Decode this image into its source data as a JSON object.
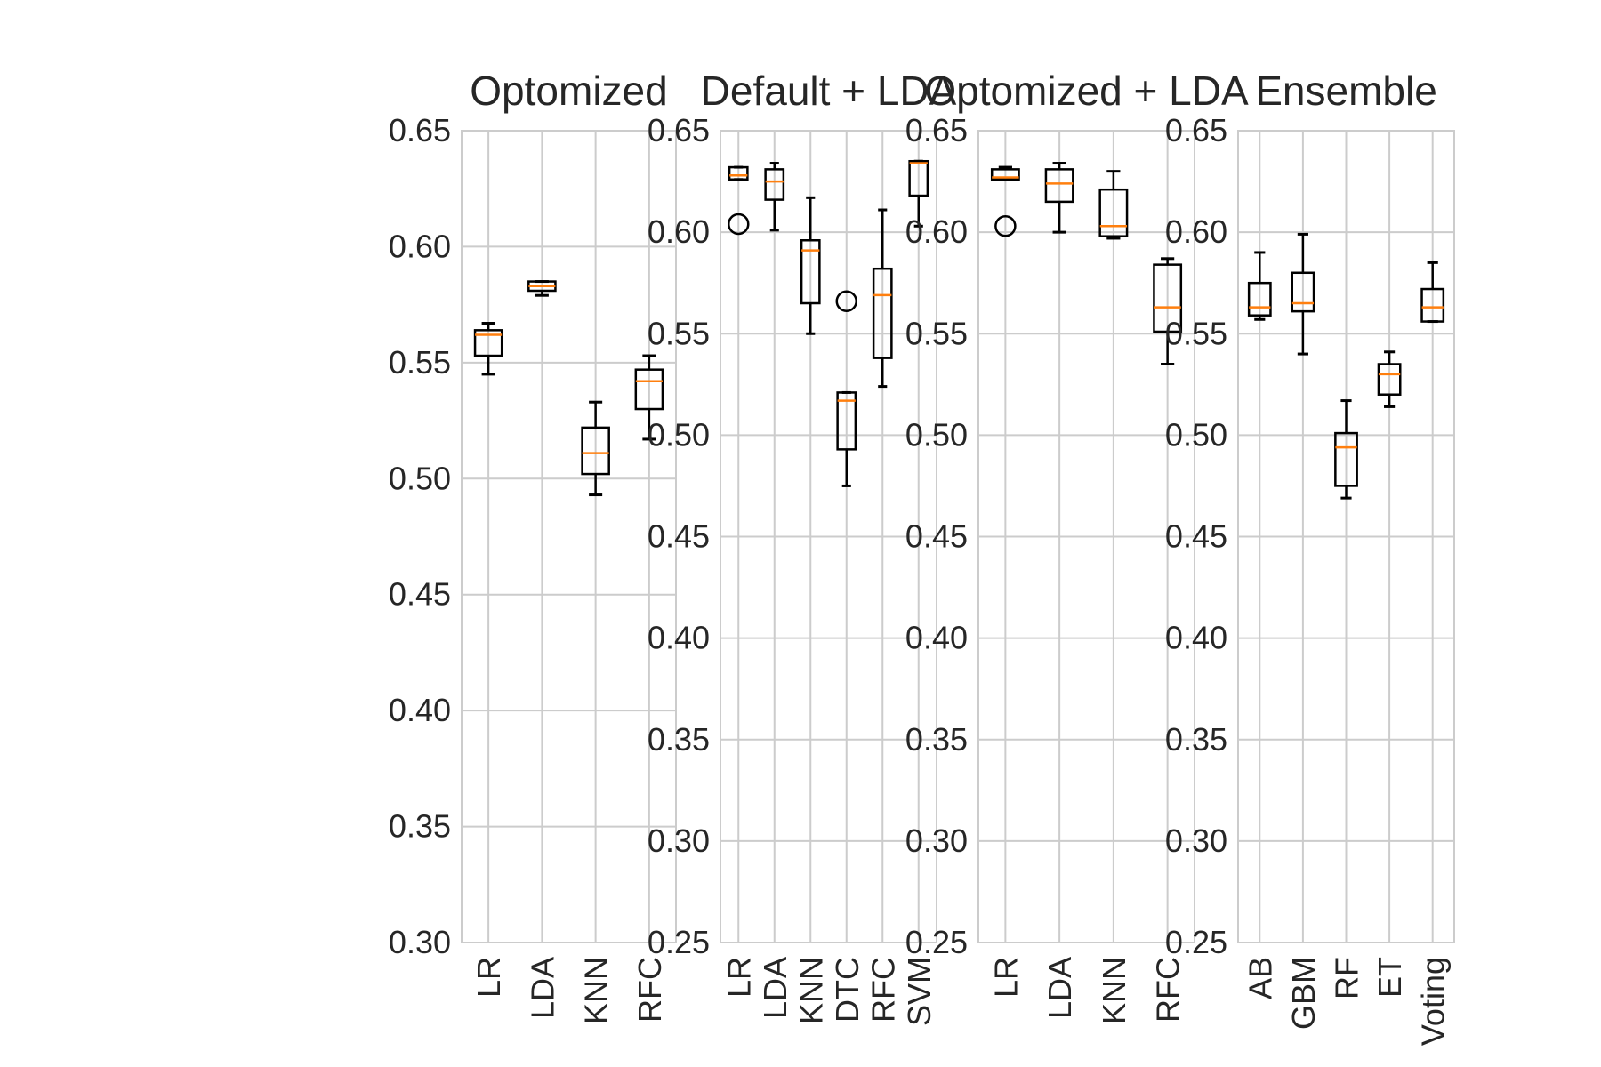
{
  "style": {
    "grid_color": "#cccccc",
    "box_color": "#000000",
    "median_color": "#ff7f0e",
    "text_color": "#262626"
  },
  "chart_data": [
    {
      "type": "box",
      "title": "Optomized",
      "ylim": [
        0.3,
        0.65
      ],
      "yticks": [
        "0.30",
        "0.35",
        "0.40",
        "0.45",
        "0.50",
        "0.55",
        "0.60",
        "0.65"
      ],
      "grid": true,
      "categories": [
        "LR",
        "LDA",
        "KNN",
        "RFC"
      ],
      "boxes": [
        {
          "label": "LR",
          "whislo": 0.545,
          "q1": 0.553,
          "med": 0.562,
          "q3": 0.564,
          "whishi": 0.567,
          "fliers": []
        },
        {
          "label": "LDA",
          "whislo": 0.579,
          "q1": 0.581,
          "med": 0.583,
          "q3": 0.585,
          "whishi": 0.585,
          "fliers": []
        },
        {
          "label": "KNN",
          "whislo": 0.493,
          "q1": 0.502,
          "med": 0.511,
          "q3": 0.522,
          "whishi": 0.533,
          "fliers": []
        },
        {
          "label": "RFC",
          "whislo": 0.517,
          "q1": 0.53,
          "med": 0.542,
          "q3": 0.547,
          "whishi": 0.553,
          "fliers": []
        }
      ]
    },
    {
      "type": "box",
      "title": "Default + LDA",
      "ylim": [
        0.25,
        0.65
      ],
      "yticks": [
        "0.25",
        "0.30",
        "0.35",
        "0.40",
        "0.45",
        "0.50",
        "0.55",
        "0.60",
        "0.65"
      ],
      "grid": true,
      "categories": [
        "LR",
        "LDA",
        "KNN",
        "DTC",
        "RFC",
        "SVM"
      ],
      "boxes": [
        {
          "label": "LR",
          "whislo": 0.626,
          "q1": 0.626,
          "med": 0.628,
          "q3": 0.632,
          "whishi": 0.632,
          "fliers": [
            0.604
          ]
        },
        {
          "label": "LDA",
          "whislo": 0.601,
          "q1": 0.616,
          "med": 0.625,
          "q3": 0.631,
          "whishi": 0.634,
          "fliers": []
        },
        {
          "label": "KNN",
          "whislo": 0.55,
          "q1": 0.565,
          "med": 0.591,
          "q3": 0.596,
          "whishi": 0.617,
          "fliers": []
        },
        {
          "label": "DTC",
          "whislo": 0.475,
          "q1": 0.493,
          "med": 0.517,
          "q3": 0.521,
          "whishi": 0.521,
          "fliers": [
            0.566
          ]
        },
        {
          "label": "RFC",
          "whislo": 0.524,
          "q1": 0.538,
          "med": 0.569,
          "q3": 0.582,
          "whishi": 0.611,
          "fliers": []
        },
        {
          "label": "SVM",
          "whislo": 0.603,
          "q1": 0.618,
          "med": 0.634,
          "q3": 0.635,
          "whishi": 0.635,
          "fliers": []
        }
      ]
    },
    {
      "type": "box",
      "title": "Optomized + LDA",
      "ylim": [
        0.25,
        0.65
      ],
      "yticks": [
        "0.25",
        "0.30",
        "0.35",
        "0.40",
        "0.45",
        "0.50",
        "0.55",
        "0.60",
        "0.65"
      ],
      "grid": true,
      "categories": [
        "LR",
        "LDA",
        "KNN",
        "RFC"
      ],
      "boxes": [
        {
          "label": "LR",
          "whislo": 0.626,
          "q1": 0.626,
          "med": 0.627,
          "q3": 0.631,
          "whishi": 0.632,
          "fliers": [
            0.603
          ]
        },
        {
          "label": "LDA",
          "whislo": 0.6,
          "q1": 0.615,
          "med": 0.624,
          "q3": 0.631,
          "whishi": 0.634,
          "fliers": []
        },
        {
          "label": "KNN",
          "whislo": 0.597,
          "q1": 0.598,
          "med": 0.603,
          "q3": 0.621,
          "whishi": 0.63,
          "fliers": []
        },
        {
          "label": "RFC",
          "whislo": 0.535,
          "q1": 0.551,
          "med": 0.563,
          "q3": 0.584,
          "whishi": 0.587,
          "fliers": []
        }
      ]
    },
    {
      "type": "box",
      "title": "Ensemble",
      "ylim": [
        0.25,
        0.65
      ],
      "yticks": [
        "0.25",
        "0.30",
        "0.35",
        "0.40",
        "0.45",
        "0.50",
        "0.55",
        "0.60",
        "0.65"
      ],
      "grid": true,
      "categories": [
        "AB",
        "GBM",
        "RF",
        "ET",
        "Voting"
      ],
      "boxes": [
        {
          "label": "AB",
          "whislo": 0.557,
          "q1": 0.559,
          "med": 0.563,
          "q3": 0.575,
          "whishi": 0.59,
          "fliers": []
        },
        {
          "label": "GBM",
          "whislo": 0.54,
          "q1": 0.561,
          "med": 0.565,
          "q3": 0.58,
          "whishi": 0.599,
          "fliers": []
        },
        {
          "label": "RF",
          "whislo": 0.469,
          "q1": 0.475,
          "med": 0.494,
          "q3": 0.501,
          "whishi": 0.517,
          "fliers": []
        },
        {
          "label": "ET",
          "whislo": 0.514,
          "q1": 0.52,
          "med": 0.53,
          "q3": 0.535,
          "whishi": 0.541,
          "fliers": []
        },
        {
          "label": "Voting",
          "whislo": 0.556,
          "q1": 0.556,
          "med": 0.563,
          "q3": 0.572,
          "whishi": 0.585,
          "fliers": []
        }
      ]
    }
  ]
}
